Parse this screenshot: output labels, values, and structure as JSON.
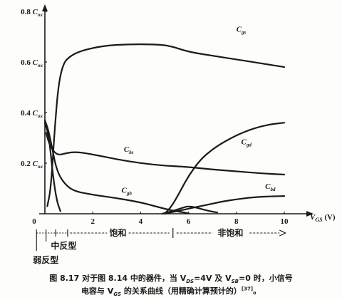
{
  "chart_data": {
    "type": "line",
    "xlabel": "V",
    "xlabel_sub": "GS",
    "xlabel_unit": "(V)",
    "x_ticks": [
      "0",
      "2",
      "4",
      "6",
      "8",
      "10"
    ],
    "y_ticks": [
      {
        "value": "0.8",
        "sym": "C",
        "sub": "ox"
      },
      {
        "value": "0.6",
        "sym": "C",
        "sub": "ox"
      },
      {
        "value": "0.4",
        "sym": "C",
        "sub": "ox"
      },
      {
        "value": "0.2",
        "sym": "C",
        "sub": "ox"
      }
    ],
    "origin_label": "0",
    "xlim": [
      0,
      10.6
    ],
    "ylim": [
      0,
      0.8
    ],
    "series": [
      {
        "name": "C",
        "sub": "gs",
        "label_at": [
          8.0,
          0.72
        ],
        "points": [
          [
            0.1,
            0.03
          ],
          [
            0.25,
            0.1
          ],
          [
            0.4,
            0.32
          ],
          [
            0.55,
            0.5
          ],
          [
            0.75,
            0.59
          ],
          [
            1.0,
            0.62
          ],
          [
            1.5,
            0.645
          ],
          [
            2.5,
            0.665
          ],
          [
            3.5,
            0.67
          ],
          [
            4.5,
            0.67
          ],
          [
            5.2,
            0.665
          ],
          [
            6.0,
            0.64
          ],
          [
            7.0,
            0.625
          ],
          [
            8.0,
            0.61
          ],
          [
            9.0,
            0.595
          ],
          [
            10.0,
            0.58
          ]
        ]
      },
      {
        "name": "C",
        "sub": "bs",
        "label_at": [
          3.3,
          0.245
        ],
        "points": [
          [
            0.05,
            0.32
          ],
          [
            0.2,
            0.27
          ],
          [
            0.5,
            0.23
          ],
          [
            0.9,
            0.24
          ],
          [
            1.3,
            0.245
          ],
          [
            2.0,
            0.235
          ],
          [
            3.0,
            0.215
          ],
          [
            4.0,
            0.2
          ],
          [
            5.0,
            0.19
          ],
          [
            6.0,
            0.185
          ],
          [
            7.0,
            0.175
          ],
          [
            8.0,
            0.168
          ],
          [
            9.0,
            0.16
          ],
          [
            10.0,
            0.155
          ]
        ]
      },
      {
        "name": "C",
        "sub": "gb",
        "label_at": [
          3.2,
          0.083
        ],
        "points": [
          [
            0.0,
            0.37
          ],
          [
            0.15,
            0.33
          ],
          [
            0.3,
            0.26
          ],
          [
            0.5,
            0.17
          ],
          [
            0.8,
            0.12
          ],
          [
            1.2,
            0.09
          ],
          [
            2.0,
            0.075
          ],
          [
            3.0,
            0.062
          ],
          [
            4.0,
            0.045
          ],
          [
            4.6,
            0.03
          ],
          [
            5.2,
            0.015
          ],
          [
            5.8,
            0.005
          ],
          [
            6.0,
            0.002
          ]
        ]
      },
      {
        "name": "C",
        "sub": "gd",
        "label_at": [
          8.2,
          0.275
        ],
        "points": [
          [
            5.0,
            0.0
          ],
          [
            5.3,
            0.03
          ],
          [
            5.6,
            0.08
          ],
          [
            6.0,
            0.15
          ],
          [
            6.5,
            0.215
          ],
          [
            7.0,
            0.255
          ],
          [
            7.5,
            0.285
          ],
          [
            8.0,
            0.31
          ],
          [
            8.5,
            0.33
          ],
          [
            9.0,
            0.345
          ],
          [
            9.5,
            0.355
          ],
          [
            10.0,
            0.36
          ]
        ]
      },
      {
        "name": "C",
        "sub": "bd",
        "label_at": [
          9.2,
          0.098
        ],
        "points": [
          [
            5.0,
            0.0
          ],
          [
            5.5,
            0.01
          ],
          [
            6.0,
            0.02
          ],
          [
            6.5,
            0.03
          ],
          [
            7.0,
            0.04
          ],
          [
            7.5,
            0.05
          ],
          [
            8.0,
            0.057
          ],
          [
            8.5,
            0.063
          ],
          [
            9.0,
            0.067
          ],
          [
            9.5,
            0.069
          ],
          [
            10.0,
            0.07
          ]
        ]
      },
      {
        "name": "",
        "sub": "",
        "label_at": null,
        "points": [
          [
            0.0,
            0.36
          ],
          [
            0.1,
            0.33
          ],
          [
            0.2,
            0.28
          ],
          [
            0.35,
            0.14
          ],
          [
            0.5,
            0.05
          ],
          [
            0.65,
            0.01
          ]
        ]
      },
      {
        "name": "",
        "sub": "",
        "label_at": null,
        "points": [
          [
            4.9,
            0.0
          ],
          [
            5.3,
            0.01
          ],
          [
            5.8,
            0.025
          ],
          [
            6.0,
            0.03
          ],
          [
            6.3,
            0.025
          ],
          [
            6.8,
            0.012
          ],
          [
            7.2,
            0.005
          ]
        ]
      }
    ]
  },
  "regions": {
    "saturation": "饱和",
    "non_saturation": "非饱和",
    "moderate_inversion": "中反型",
    "weak_inversion": "弱反型"
  },
  "caption": {
    "line1": "图 8.17  对于图 8.14 中的器件，当 V",
    "line1_sub1": "DS",
    "line1_mid": "=4V 及 V",
    "line1_sub2": "SB",
    "line1_end": "=0 时，小信号",
    "line2": "电容与 V",
    "line2_sub": "GS",
    "line2_end": " 的关系曲线（用精确计算预计的）",
    "ref": "[37]",
    "period": "。"
  }
}
